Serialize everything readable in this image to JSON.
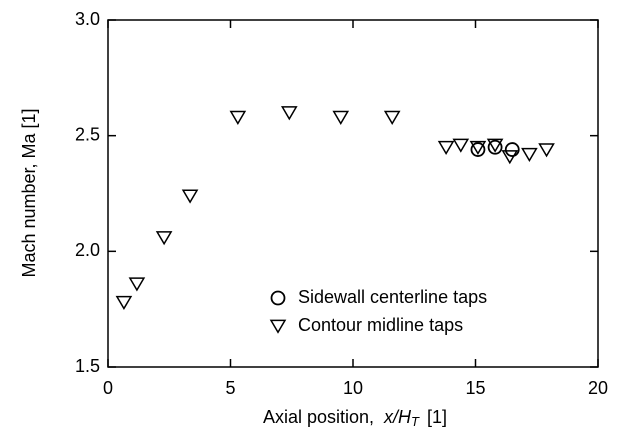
{
  "chart_data": {
    "type": "scatter",
    "x_label": {
      "text": "Axial position,",
      "var": "x/H",
      "sub": "T",
      "unit": "[1]"
    },
    "y_label": "Mach number,  Ma  [1]",
    "xlim": [
      0,
      20
    ],
    "xticks": [
      0,
      5,
      10,
      15,
      20
    ],
    "ylim": [
      1.5,
      3.0
    ],
    "yticks": [
      1.5,
      {
        "value": 2.0,
        "label": "2.0"
      },
      2.5,
      {
        "value": 3.0,
        "label": "3.0"
      }
    ],
    "grid": false,
    "legend": "lower right",
    "series": [
      {
        "name": "Sidewall centerline taps",
        "marker": "circle",
        "color": "#000000",
        "x": [
          15.1,
          15.8,
          16.5
        ],
        "values": [
          2.44,
          2.45,
          2.44
        ]
      },
      {
        "name": "Contour midline taps",
        "marker": "triangle-down",
        "color": "#000000",
        "x": [
          0.65,
          1.18,
          2.29,
          3.35,
          5.3,
          7.4,
          9.5,
          11.6,
          13.8,
          14.4,
          15.1,
          15.8,
          16.4,
          17.2,
          17.9
        ],
        "values": [
          1.78,
          1.86,
          2.06,
          2.24,
          2.58,
          2.6,
          2.58,
          2.58,
          2.45,
          2.46,
          2.45,
          2.46,
          2.41,
          2.42,
          2.44
        ]
      }
    ]
  }
}
